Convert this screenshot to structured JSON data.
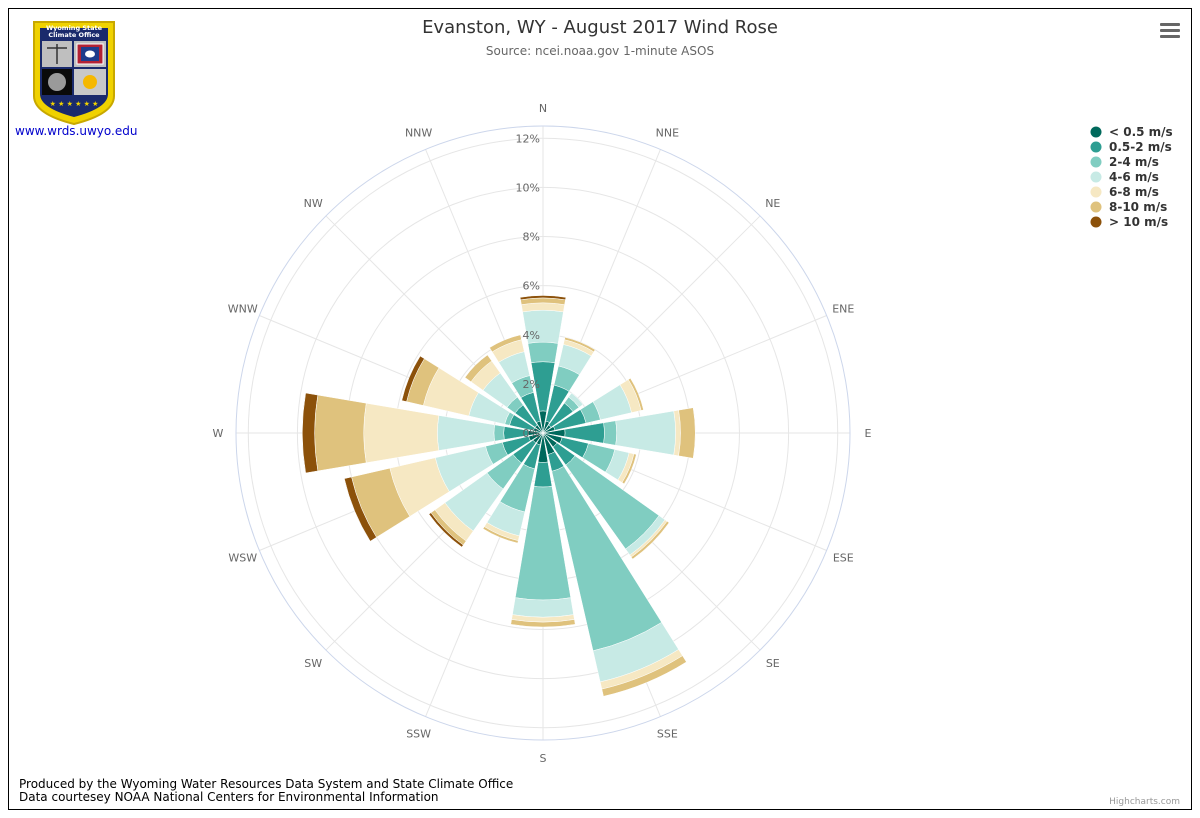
{
  "header": {
    "title": "Evanston, WY - August 2017 Wind Rose",
    "subtitle": "Source: ncei.noaa.gov 1-minute ASOS"
  },
  "logo": {
    "line1": "Wyoming State",
    "line2": "Climate Office",
    "link": "www.wrds.uwyo.edu"
  },
  "footer": {
    "line1": "Produced by the Wyoming Water Resources Data System and State Climate Office",
    "line2": "Data courtesey NOAA National Centers for Environmental Information"
  },
  "credits": "Highcharts.com",
  "chart_data": {
    "type": "windrose",
    "directions": [
      "N",
      "NNE",
      "NE",
      "ENE",
      "E",
      "ESE",
      "SE",
      "SSE",
      "S",
      "SSW",
      "SW",
      "WSW",
      "W",
      "WNW",
      "NW",
      "NNW"
    ],
    "radial_ticks": [
      "0%",
      "2%",
      "4%",
      "6%",
      "8%",
      "10%",
      "12%"
    ],
    "radial_max": 12.5,
    "stacking": "normal",
    "series": [
      {
        "name": "< 0.5 m/s",
        "color": "#00695c",
        "values": [
          0.9,
          0.5,
          0.4,
          0.5,
          0.9,
          0.8,
          0.7,
          0.9,
          1.2,
          0.5,
          0.5,
          0.6,
          0.6,
          0.4,
          0.4,
          0.5
        ]
      },
      {
        "name": "0.5-2 m/s",
        "color": "#2e9e92",
        "values": [
          2.0,
          1.5,
          1.1,
          1.3,
          1.6,
          1.1,
          0.9,
          0.7,
          1.0,
          1.0,
          1.0,
          1.1,
          1.0,
          1.0,
          1.0,
          1.2
        ]
      },
      {
        "name": "2-4 m/s",
        "color": "#80cdc1",
        "values": [
          0.8,
          0.8,
          0.3,
          0.6,
          0.5,
          1.1,
          4.2,
          7.5,
          4.6,
          1.8,
          1.3,
          0.7,
          0.4,
          0.2,
          0.4,
          0.7
        ]
      },
      {
        "name": "4-6 m/s",
        "color": "#c7eae5",
        "values": [
          1.3,
          0.9,
          0.2,
          1.3,
          2.4,
          0.6,
          0.3,
          1.3,
          0.7,
          1.0,
          2.1,
          2.1,
          2.3,
          1.5,
          1.2,
          1.0
        ]
      },
      {
        "name": "6-8 m/s",
        "color": "#f6e8c3",
        "values": [
          0.3,
          0.2,
          0.0,
          0.4,
          0.2,
          0.2,
          0.1,
          0.3,
          0.2,
          0.2,
          0.5,
          1.9,
          3.0,
          1.9,
          0.6,
          0.5
        ]
      },
      {
        "name": "8-10 m/s",
        "color": "#dfc27d",
        "values": [
          0.2,
          0.1,
          0.0,
          0.1,
          0.6,
          0.1,
          0.1,
          0.3,
          0.2,
          0.1,
          0.2,
          1.6,
          2.0,
          0.7,
          0.3,
          0.2
        ]
      },
      {
        "name": "> 10 m/s",
        "color": "#8c510a",
        "values": [
          0.1,
          0.0,
          0.0,
          0.0,
          0.0,
          0.0,
          0.0,
          0.0,
          0.0,
          0.0,
          0.1,
          0.3,
          0.5,
          0.2,
          0.0,
          0.0
        ]
      }
    ],
    "grid": true,
    "legend_position": "top-right"
  }
}
